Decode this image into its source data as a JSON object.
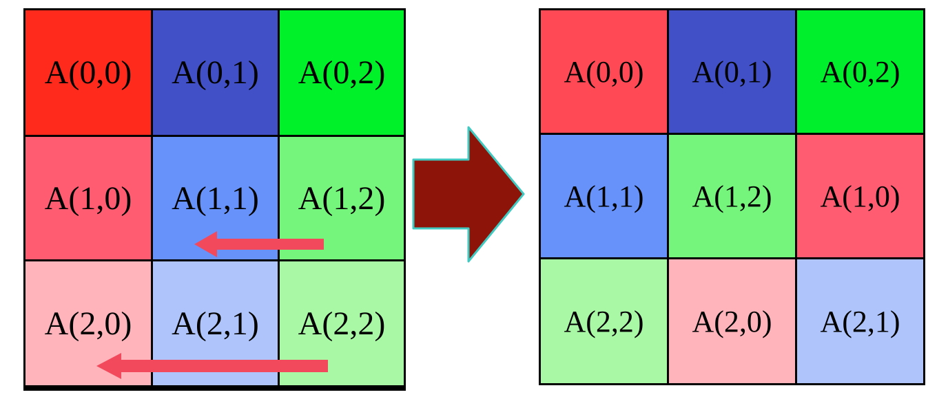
{
  "colors": {
    "border": "#000000",
    "red_strong": "#ff2a1c",
    "blue_strong": "#4250c8",
    "green_strong": "#00f02a",
    "red_medium": "#ff5c72",
    "blue_medium": "#6692fa",
    "green_medium": "#76f57c",
    "red_light": "#ffb4bc",
    "blue_light": "#aec4fa",
    "green_light": "#a8f8a6",
    "right_red_top": "#ff4a55",
    "right_green_top": "#00ef2c",
    "shift_arrow": "#f24a5c",
    "transform_arrow_fill": "#8d1408",
    "transform_arrow_stroke": "#3fc9c0"
  },
  "left_matrix": {
    "rows": [
      [
        {
          "label": "A(0,0)",
          "color": "#ff2a1c"
        },
        {
          "label": "A(0,1)",
          "color": "#4250c8"
        },
        {
          "label": "A(0,2)",
          "color": "#00f02a"
        }
      ],
      [
        {
          "label": "A(1,0)",
          "color": "#ff5c72"
        },
        {
          "label": "A(1,1)",
          "color": "#6692fa"
        },
        {
          "label": "A(1,2)",
          "color": "#76f57c"
        }
      ],
      [
        {
          "label": "A(2,0)",
          "color": "#ffb4bc"
        },
        {
          "label": "A(2,1)",
          "color": "#aec4fa"
        },
        {
          "label": "A(2,2)",
          "color": "#a8f8a6"
        }
      ]
    ]
  },
  "right_matrix": {
    "rows": [
      [
        {
          "label": "A(0,0)",
          "color": "#ff4a55"
        },
        {
          "label": "A(0,1)",
          "color": "#4250c8"
        },
        {
          "label": "A(0,2)",
          "color": "#00ef2c"
        }
      ],
      [
        {
          "label": "A(1,1)",
          "color": "#6692fa"
        },
        {
          "label": "A(1,2)",
          "color": "#76f57c"
        },
        {
          "label": "A(1,0)",
          "color": "#ff5c72"
        }
      ],
      [
        {
          "label": "A(2,2)",
          "color": "#a8f8a6"
        },
        {
          "label": "A(2,0)",
          "color": "#ffb4bc"
        },
        {
          "label": "A(2,1)",
          "color": "#aec4fa"
        }
      ]
    ]
  },
  "shift_arrows": [
    {
      "row": 1,
      "shift": 1,
      "direction": "left"
    },
    {
      "row": 2,
      "shift": 2,
      "direction": "left"
    }
  ],
  "transform_arrow": {
    "direction": "right"
  }
}
